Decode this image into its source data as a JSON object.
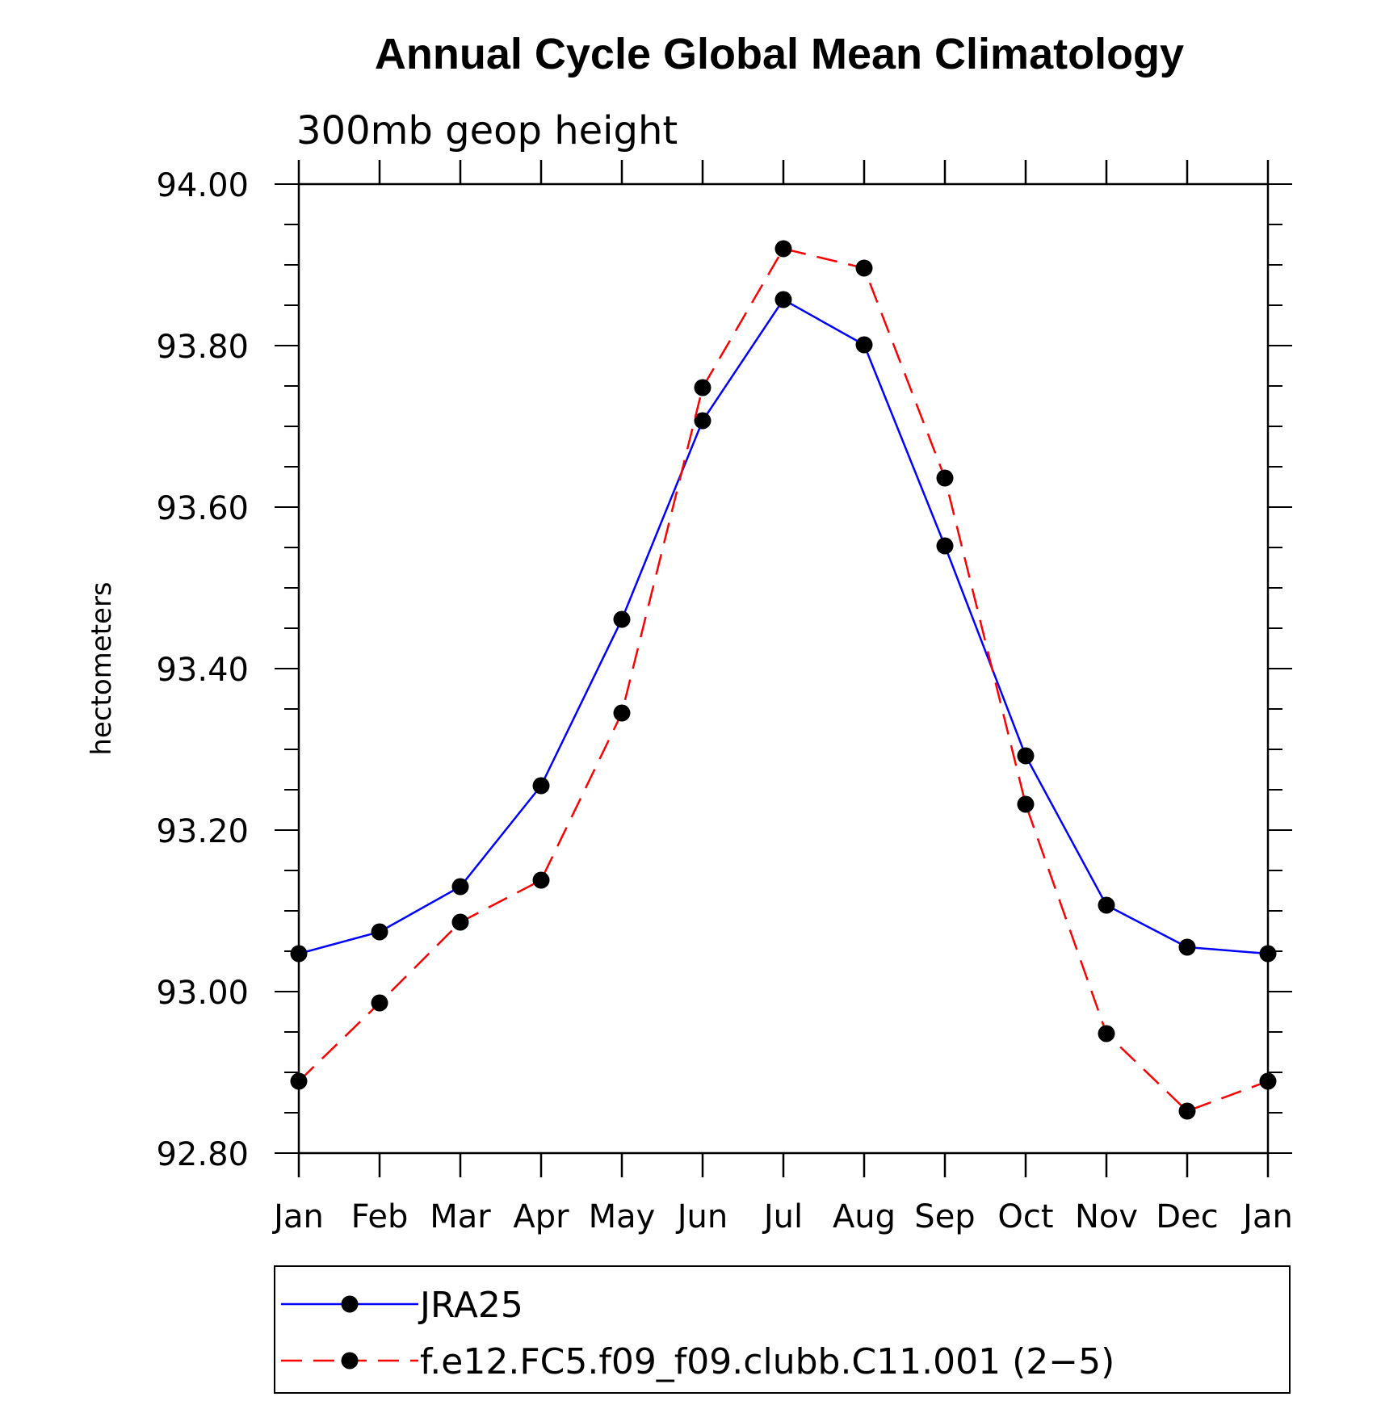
{
  "chart_data": {
    "type": "line",
    "title": "Annual Cycle Global Mean Climatology",
    "subtitle": "300mb geop height",
    "ylabel": "hectometers",
    "xlabel": "",
    "categories": [
      "Jan",
      "Feb",
      "Mar",
      "Apr",
      "May",
      "Jun",
      "Jul",
      "Aug",
      "Sep",
      "Oct",
      "Nov",
      "Dec",
      "Jan"
    ],
    "ylim": [
      92.8,
      94.0
    ],
    "yticks": [
      "92.80",
      "93.00",
      "93.20",
      "93.40",
      "93.60",
      "93.80",
      "94.00"
    ],
    "grid": false,
    "legend_position": "bottom",
    "series": [
      {
        "name": "JRA25",
        "color": "#0000ff",
        "dash": "solid",
        "marker": "filled-circle",
        "values": [
          93.047,
          93.074,
          93.13,
          93.255,
          93.461,
          93.707,
          93.857,
          93.801,
          93.552,
          93.292,
          93.107,
          93.055,
          93.047
        ]
      },
      {
        "name": "f.e12.FC5.f09_f09.clubb.C11.001 (2−5)",
        "color": "#ff0000",
        "dash": "dashed",
        "marker": "filled-circle",
        "values": [
          92.889,
          92.986,
          93.086,
          93.138,
          93.345,
          93.748,
          93.92,
          93.896,
          93.636,
          93.232,
          92.948,
          92.852,
          92.889
        ]
      }
    ]
  }
}
